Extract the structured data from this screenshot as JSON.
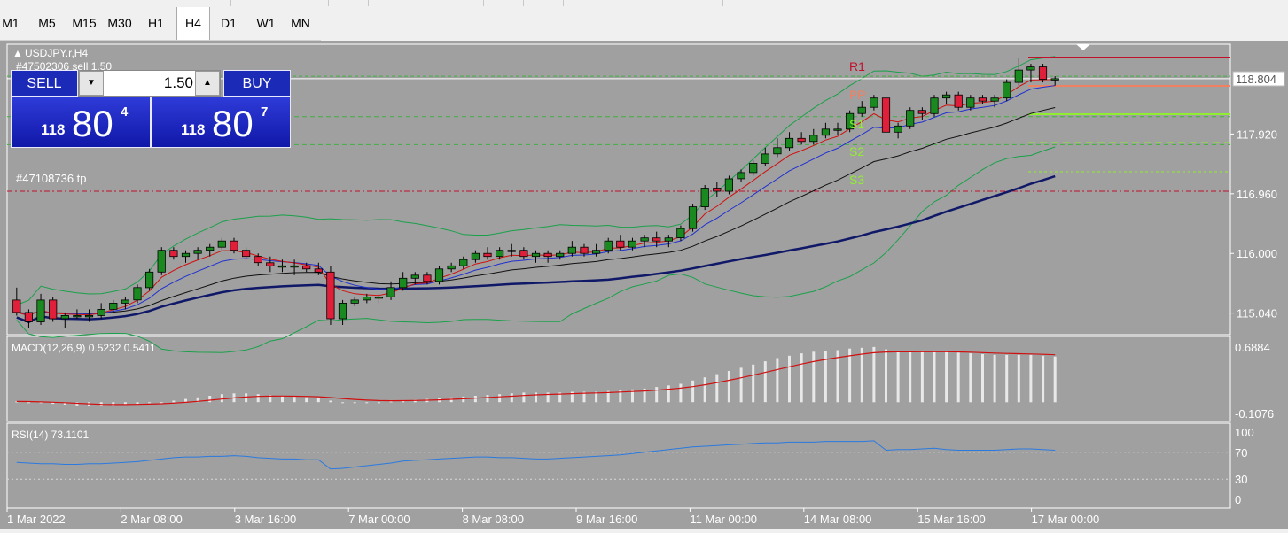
{
  "timeframes": [
    "M1",
    "M5",
    "M15",
    "M30",
    "H1",
    "H4",
    "D1",
    "W1",
    "MN"
  ],
  "active_timeframe": "H4",
  "chart": {
    "symbol": "USDJPY.r,H4",
    "order_label": "#47502306 sell 1.50",
    "tp_label": "#47108736 tp",
    "current_price": "118.804",
    "pivots": [
      "R1",
      "PP",
      "S1",
      "S2",
      "S3"
    ]
  },
  "trade_panel": {
    "sell_label": "SELL",
    "buy_label": "BUY",
    "lot": "1.50",
    "sell_prefix": "118",
    "sell_big": "80",
    "sell_sup": "4",
    "buy_prefix": "118",
    "buy_big": "80",
    "buy_sup": "7"
  },
  "macd": {
    "label": "MACD(12,26,9) 0.5232 0.5411",
    "axis": [
      "0.6884",
      "-0.1076"
    ]
  },
  "rsi": {
    "label": "RSI(14) 73.1101",
    "axis": [
      "100",
      "70",
      "30",
      "0"
    ]
  },
  "chart_data": {
    "type": "candlestick",
    "symbol": "USDJPY.r",
    "timeframe": "H4",
    "y_ticks": [
      "117.920",
      "116.960",
      "116.000",
      "115.040"
    ],
    "ylim": [
      114.75,
      119.25
    ],
    "x_ticks": [
      "1 Mar 2022",
      "2 Mar 08:00",
      "3 Mar 16:00",
      "7 Mar 00:00",
      "8 Mar 08:00",
      "9 Mar 16:00",
      "11 Mar 00:00",
      "14 Mar 08:00",
      "15 Mar 16:00",
      "17 Mar 00:00"
    ],
    "candles": [
      [
        115.25,
        115.45,
        115.0,
        115.05
      ],
      [
        115.05,
        115.1,
        114.8,
        114.9
      ],
      [
        114.9,
        115.35,
        114.85,
        115.25
      ],
      [
        115.25,
        115.3,
        114.9,
        114.95
      ],
      [
        114.95,
        115.05,
        114.8,
        115.0
      ],
      [
        115.0,
        115.1,
        114.95,
        115.0
      ],
      [
        115.0,
        115.1,
        114.9,
        115.0
      ],
      [
        115.0,
        115.2,
        114.95,
        115.1
      ],
      [
        115.1,
        115.25,
        115.05,
        115.2
      ],
      [
        115.2,
        115.3,
        115.1,
        115.25
      ],
      [
        115.25,
        115.5,
        115.2,
        115.45
      ],
      [
        115.45,
        115.75,
        115.4,
        115.7
      ],
      [
        115.7,
        116.1,
        115.65,
        116.05
      ],
      [
        116.05,
        116.1,
        115.9,
        115.95
      ],
      [
        115.95,
        116.05,
        115.85,
        116.0
      ],
      [
        116.0,
        116.1,
        115.9,
        116.05
      ],
      [
        116.05,
        116.15,
        115.95,
        116.1
      ],
      [
        116.1,
        116.25,
        116.05,
        116.2
      ],
      [
        116.2,
        116.25,
        116.0,
        116.05
      ],
      [
        116.05,
        116.1,
        115.9,
        115.95
      ],
      [
        115.95,
        116.0,
        115.8,
        115.85
      ],
      [
        115.85,
        115.95,
        115.7,
        115.8
      ],
      [
        115.8,
        115.9,
        115.7,
        115.8
      ],
      [
        115.8,
        115.9,
        115.65,
        115.8
      ],
      [
        115.8,
        115.85,
        115.7,
        115.75
      ],
      [
        115.75,
        115.85,
        115.65,
        115.7
      ],
      [
        115.7,
        115.8,
        114.85,
        114.95
      ],
      [
        114.95,
        115.25,
        114.85,
        115.2
      ],
      [
        115.2,
        115.3,
        115.15,
        115.25
      ],
      [
        115.25,
        115.35,
        115.2,
        115.3
      ],
      [
        115.3,
        115.35,
        115.2,
        115.3
      ],
      [
        115.3,
        115.55,
        115.25,
        115.45
      ],
      [
        115.45,
        115.7,
        115.4,
        115.6
      ],
      [
        115.6,
        115.7,
        115.5,
        115.65
      ],
      [
        115.65,
        115.7,
        115.5,
        115.55
      ],
      [
        115.55,
        115.8,
        115.5,
        115.75
      ],
      [
        115.75,
        115.85,
        115.7,
        115.8
      ],
      [
        115.8,
        115.95,
        115.75,
        115.9
      ],
      [
        115.9,
        116.05,
        115.85,
        116.0
      ],
      [
        116.0,
        116.1,
        115.9,
        115.95
      ],
      [
        115.95,
        116.1,
        115.9,
        116.05
      ],
      [
        116.05,
        116.15,
        115.95,
        116.05
      ],
      [
        116.05,
        116.1,
        115.9,
        115.95
      ],
      [
        115.95,
        116.05,
        115.85,
        116.0
      ],
      [
        116.0,
        116.05,
        115.85,
        115.95
      ],
      [
        115.95,
        116.05,
        115.9,
        116.0
      ],
      [
        116.0,
        116.2,
        115.95,
        116.1
      ],
      [
        116.1,
        116.15,
        115.95,
        116.0
      ],
      [
        116.0,
        116.15,
        115.95,
        116.05
      ],
      [
        116.05,
        116.25,
        116.0,
        116.2
      ],
      [
        116.2,
        116.3,
        116.05,
        116.1
      ],
      [
        116.1,
        116.25,
        116.05,
        116.2
      ],
      [
        116.2,
        116.3,
        116.1,
        116.25
      ],
      [
        116.25,
        116.35,
        116.1,
        116.2
      ],
      [
        116.2,
        116.3,
        116.1,
        116.25
      ],
      [
        116.25,
        116.45,
        116.2,
        116.4
      ],
      [
        116.4,
        116.8,
        116.35,
        116.75
      ],
      [
        116.75,
        117.1,
        116.7,
        117.05
      ],
      [
        117.05,
        117.15,
        116.9,
        117.0
      ],
      [
        117.0,
        117.25,
        116.95,
        117.2
      ],
      [
        117.2,
        117.35,
        117.15,
        117.3
      ],
      [
        117.3,
        117.5,
        117.25,
        117.45
      ],
      [
        117.45,
        117.7,
        117.4,
        117.6
      ],
      [
        117.6,
        117.85,
        117.55,
        117.7
      ],
      [
        117.7,
        117.95,
        117.65,
        117.85
      ],
      [
        117.85,
        117.95,
        117.75,
        117.8
      ],
      [
        117.8,
        118.0,
        117.75,
        117.9
      ],
      [
        117.9,
        118.1,
        117.85,
        118.0
      ],
      [
        118.0,
        118.1,
        117.9,
        118.0
      ],
      [
        118.0,
        118.3,
        117.95,
        118.25
      ],
      [
        118.25,
        118.45,
        118.2,
        118.35
      ],
      [
        118.35,
        118.55,
        118.3,
        118.5
      ],
      [
        118.5,
        118.55,
        117.85,
        117.95
      ],
      [
        117.95,
        118.1,
        117.85,
        118.05
      ],
      [
        118.05,
        118.35,
        118.0,
        118.3
      ],
      [
        118.3,
        118.35,
        118.15,
        118.25
      ],
      [
        118.25,
        118.55,
        118.2,
        118.5
      ],
      [
        118.5,
        118.6,
        118.4,
        118.55
      ],
      [
        118.55,
        118.6,
        118.3,
        118.35
      ],
      [
        118.35,
        118.55,
        118.3,
        118.5
      ],
      [
        118.5,
        118.55,
        118.4,
        118.45
      ],
      [
        118.45,
        118.55,
        118.35,
        118.5
      ],
      [
        118.5,
        118.8,
        118.45,
        118.75
      ],
      [
        118.75,
        119.15,
        118.7,
        118.95
      ],
      [
        118.95,
        119.05,
        118.75,
        119.0
      ],
      [
        119.0,
        119.05,
        118.75,
        118.8
      ],
      [
        118.8,
        118.85,
        118.7,
        118.81
      ]
    ],
    "pivot_levels": {
      "R1": 118.78,
      "PP": 118.8,
      "S1": 118.25,
      "S2": 117.75,
      "S3": 117.2,
      "tp": 117.0
    },
    "macd_histogram": [
      0.01,
      0.0,
      -0.01,
      -0.02,
      -0.03,
      -0.04,
      -0.05,
      -0.05,
      -0.04,
      -0.03,
      -0.02,
      -0.01,
      0.0,
      0.02,
      0.04,
      0.06,
      0.08,
      0.1,
      0.11,
      0.11,
      0.1,
      0.09,
      0.08,
      0.07,
      0.06,
      0.05,
      0.02,
      0.0,
      -0.01,
      -0.01,
      0.0,
      0.01,
      0.02,
      0.03,
      0.04,
      0.05,
      0.06,
      0.07,
      0.08,
      0.09,
      0.1,
      0.11,
      0.12,
      0.12,
      0.12,
      0.12,
      0.13,
      0.13,
      0.13,
      0.14,
      0.15,
      0.16,
      0.17,
      0.19,
      0.21,
      0.23,
      0.27,
      0.31,
      0.35,
      0.39,
      0.43,
      0.47,
      0.51,
      0.55,
      0.58,
      0.61,
      0.63,
      0.64,
      0.65,
      0.67,
      0.68,
      0.69,
      0.66,
      0.64,
      0.63,
      0.63,
      0.63,
      0.63,
      0.62,
      0.61,
      0.6,
      0.59,
      0.59,
      0.59,
      0.59,
      0.58,
      0.57
    ],
    "rsi": [
      55,
      54,
      53,
      53,
      52,
      52,
      53,
      53,
      54,
      55,
      56,
      58,
      60,
      62,
      63,
      63,
      64,
      64,
      65,
      64,
      62,
      61,
      60,
      60,
      59,
      59,
      45,
      46,
      48,
      50,
      52,
      54,
      57,
      58,
      59,
      60,
      61,
      62,
      63,
      63,
      62,
      62,
      61,
      60,
      60,
      61,
      62,
      63,
      64,
      65,
      66,
      68,
      70,
      72,
      74,
      76,
      78,
      79,
      80,
      81,
      82,
      83,
      84,
      84,
      85,
      85,
      85,
      86,
      86,
      86,
      86,
      87,
      73,
      74,
      74,
      75,
      76,
      74,
      73,
      73,
      73,
      73,
      74,
      75,
      75,
      74,
      73
    ]
  }
}
